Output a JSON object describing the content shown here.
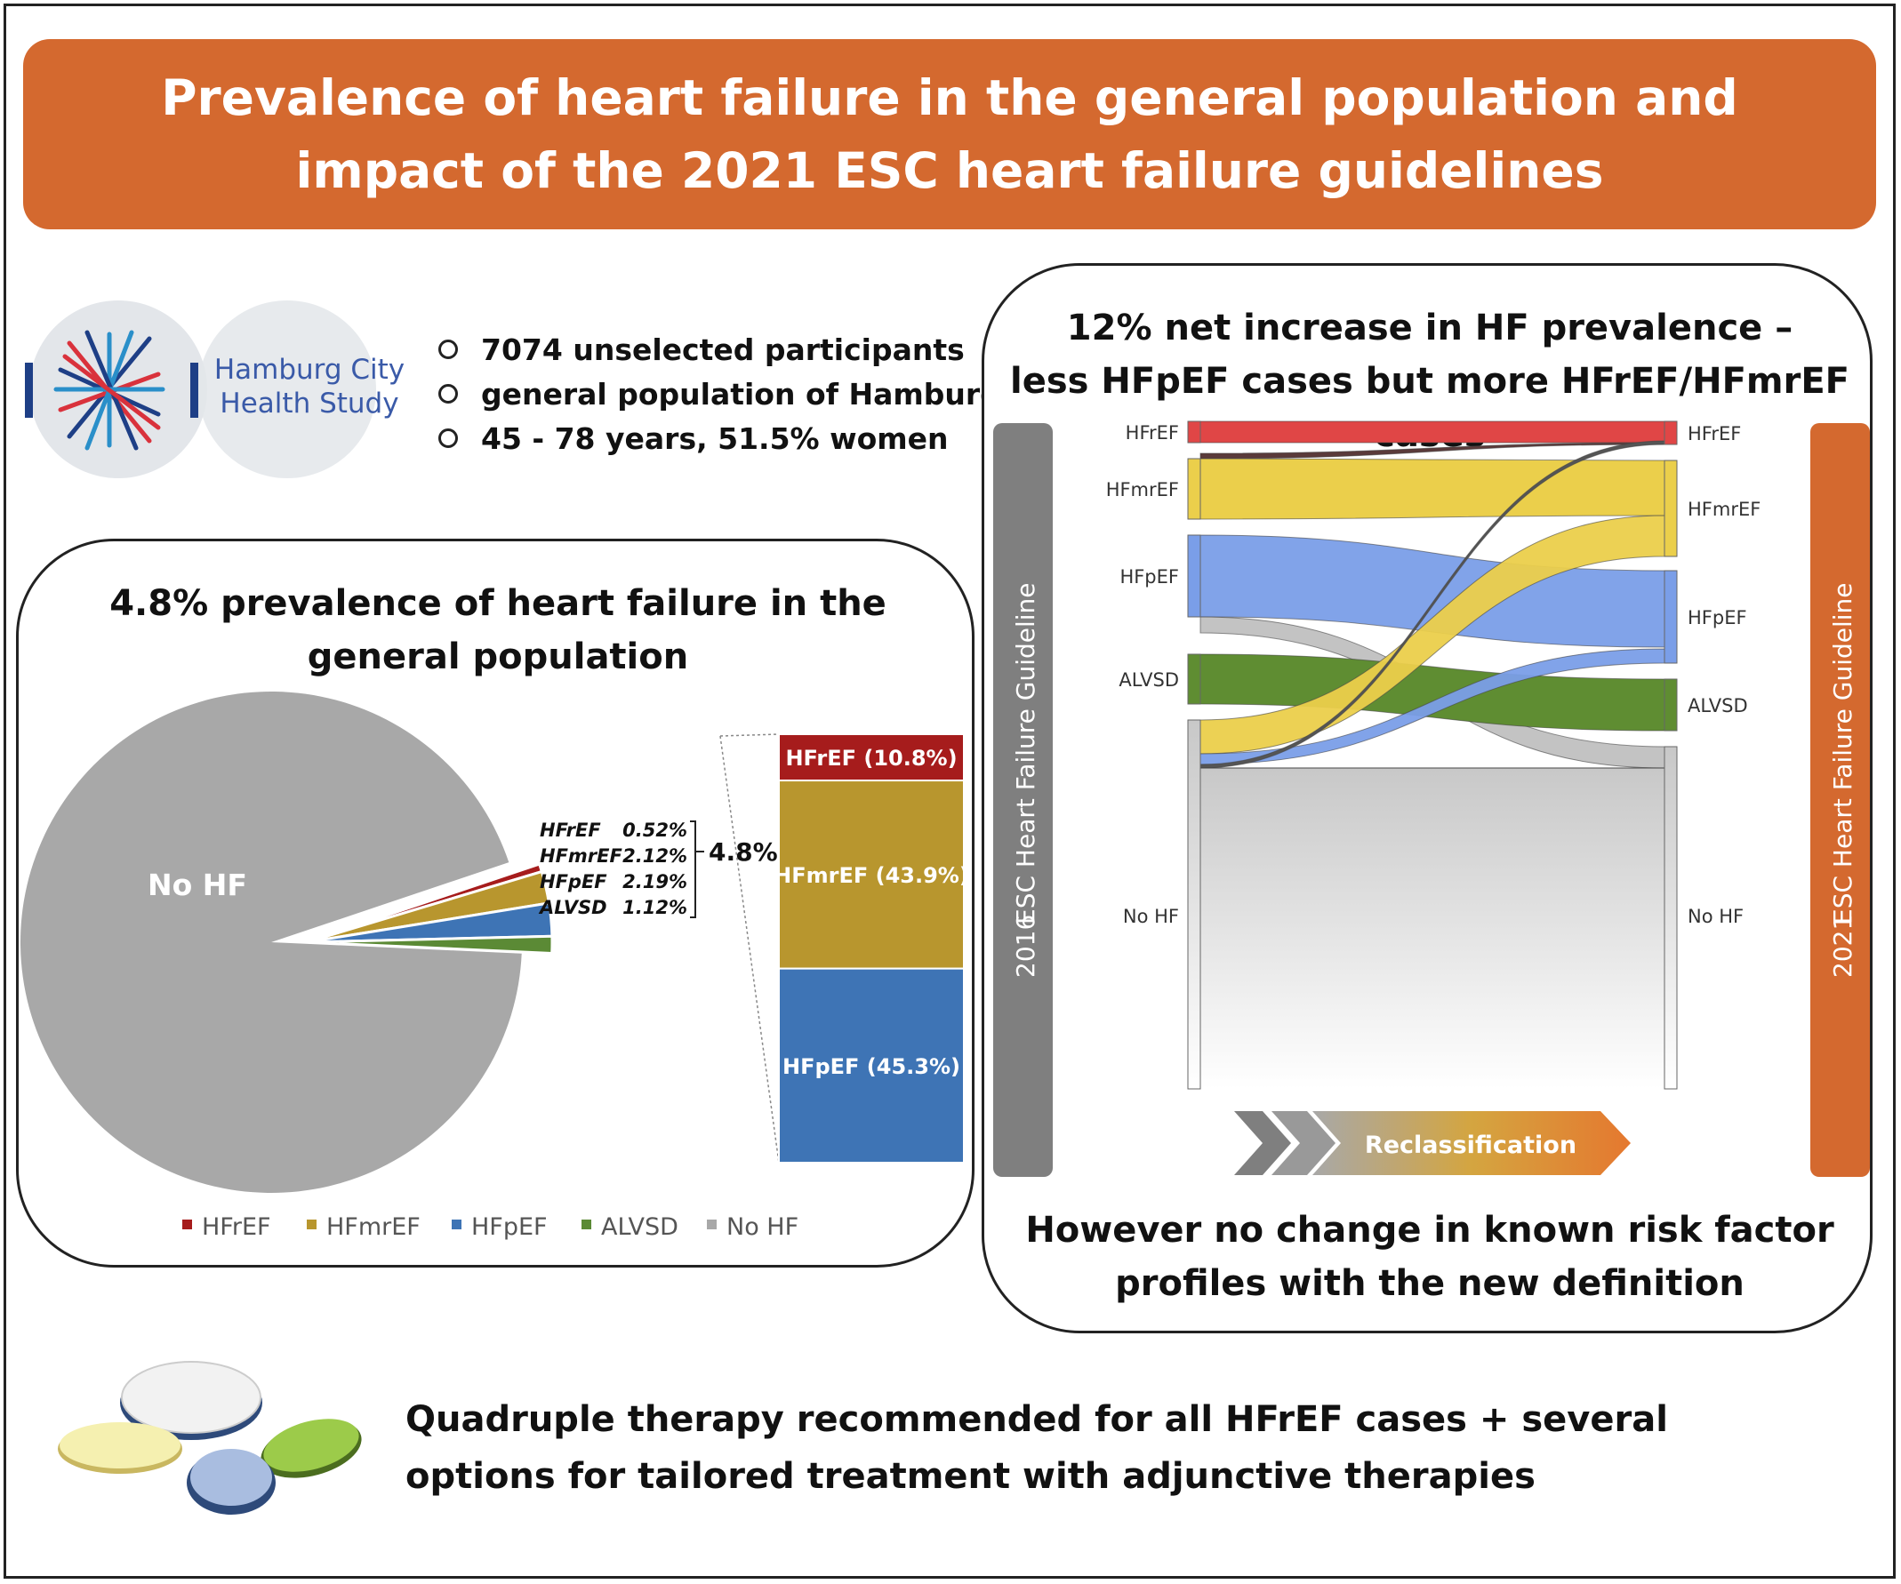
{
  "title": "Prevalence of heart failure in the general population and impact of the 2021 ESC heart failure guidelines",
  "logo": {
    "line1": "Hamburg City",
    "line2": "Health Study"
  },
  "bullets": [
    "7074 unselected participants",
    "general population of Hamburg",
    "45 - 78 years, 51.5% women"
  ],
  "left_panel": {
    "title_line1": "4.8% prevalence of heart failure in the",
    "title_line2": "general population"
  },
  "right_panel": {
    "title_line1": "12% net increase in HF prevalence –",
    "title_line2": "less HFpEF cases but more HFrEF/HFmrEF cases",
    "left_bar_label": "ESC Heart Failure Guideline",
    "left_bar_year": "2016",
    "right_bar_label": "ESC Heart Failure Guideline",
    "right_bar_year": "2021",
    "arrow_label": "Reclassification",
    "footer_line1": "However no change in known risk factor",
    "footer_line2": "profiles with the new definition"
  },
  "bottom": {
    "line1": "Quadruple therapy recommended for all HFrEF cases + several",
    "line2": "options for tailored treatment with adjunctive therapies"
  },
  "colors": {
    "banner": "#d4692f",
    "HFrEF": "#a61c1c",
    "HFmrEF": "#b8962e",
    "HFpEF": "#3e74b5",
    "ALVSD": "#5b8a35",
    "NoHF": "#a8a8a8",
    "sankey_HFrEF": "#e04646",
    "sankey_HFmrEF": "#ebcf4b",
    "sankey_HFpEF": "#7a9ee8",
    "sankey_ALVSD": "#5f8d32",
    "sankey_NoHF": "#c8c8c8"
  },
  "chart_data": [
    {
      "type": "pie",
      "labels": [
        "No HF",
        "HFrEF",
        "HFmrEF",
        "HFpEF",
        "ALVSD"
      ],
      "values": [
        95.2,
        0.52,
        2.12,
        2.19,
        1.12
      ],
      "value_labels": [
        "",
        "0.52%",
        "2.12%",
        "2.19%",
        "1.12%"
      ],
      "slice_label": "No HF",
      "bracket_total": "4.8%",
      "legend": [
        "HFrEF",
        "HFmrEF",
        "HFpEF",
        "ALVSD",
        "No HF"
      ],
      "legend_position": "bottom"
    },
    {
      "type": "bar",
      "stacked": true,
      "categories": [
        "HFrEF",
        "HFmrEF",
        "HFpEF"
      ],
      "values": [
        10.8,
        43.9,
        45.3
      ],
      "labels": [
        "HFrEF (10.8%)",
        "HFmrEF (43.9%)",
        "HFpEF (45.3%)"
      ]
    },
    {
      "type": "sankey",
      "left_nodes": [
        "HFrEF",
        "HFmrEF",
        "HFpEF",
        "ALVSD",
        "No HF"
      ],
      "right_nodes": [
        "HFrEF",
        "HFmrEF",
        "HFpEF",
        "ALVSD",
        "No HF"
      ],
      "left_title": "2016",
      "right_title": "2021"
    }
  ]
}
